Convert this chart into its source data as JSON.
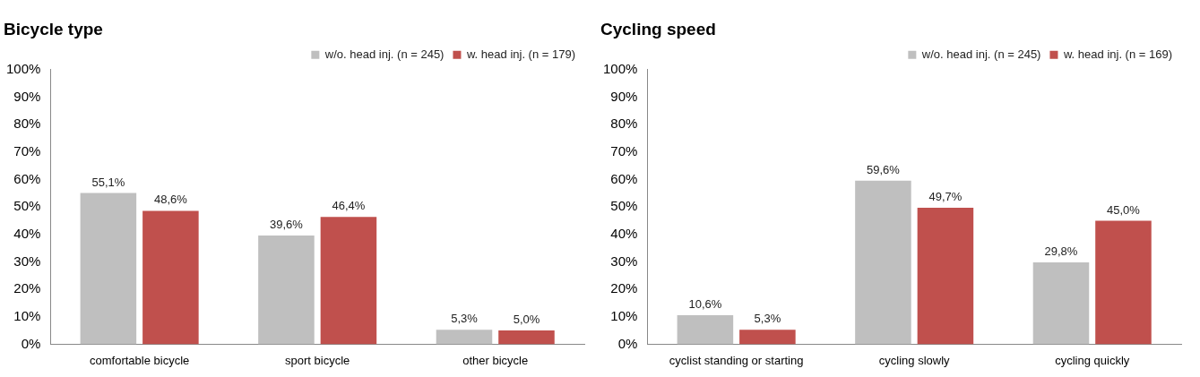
{
  "chart_data": [
    {
      "type": "bar",
      "title": "Bicycle type",
      "categories": [
        "comfortable bicycle",
        "sport bicycle",
        "other bicycle"
      ],
      "series": [
        {
          "name": "w/o. head inj. (n = 245)",
          "color": "#bfbfbf",
          "values": [
            55.1,
            39.6,
            5.3
          ],
          "value_labels": [
            "55,1%",
            "39,6%",
            "5,3%"
          ]
        },
        {
          "name": "w. head inj. (n = 179)",
          "color": "#c0504d",
          "values": [
            48.6,
            46.4,
            5.0
          ],
          "value_labels": [
            "48,6%",
            "46,4%",
            "5,0%"
          ]
        }
      ],
      "ylim": [
        0,
        100
      ],
      "yticks": [
        {
          "value": 0,
          "label": "0%"
        },
        {
          "value": 10,
          "label": "10%"
        },
        {
          "value": 20,
          "label": "20%"
        },
        {
          "value": 30,
          "label": "30%"
        },
        {
          "value": 40,
          "label": "40%"
        },
        {
          "value": 50,
          "label": "50%"
        },
        {
          "value": 60,
          "label": "60%"
        },
        {
          "value": 70,
          "label": "70%"
        },
        {
          "value": 80,
          "label": "80%"
        },
        {
          "value": 90,
          "label": "90%"
        },
        {
          "value": 100,
          "label": "100%"
        }
      ],
      "grid": false,
      "legend": "top right"
    },
    {
      "type": "bar",
      "title": "Cycling speed",
      "categories": [
        "cyclist standing or starting",
        "cycling slowly",
        "cycling quickly"
      ],
      "series": [
        {
          "name": "w/o. head inj. (n = 245)",
          "color": "#bfbfbf",
          "values": [
            10.6,
            59.6,
            29.8
          ],
          "value_labels": [
            "10,6%",
            "59,6%",
            "29,8%"
          ]
        },
        {
          "name": "w. head inj. (n = 169)",
          "color": "#c0504d",
          "values": [
            5.3,
            49.7,
            45.0
          ],
          "value_labels": [
            "5,3%",
            "49,7%",
            "45,0%"
          ]
        }
      ],
      "ylim": [
        0,
        100
      ],
      "yticks": [
        {
          "value": 0,
          "label": "0%"
        },
        {
          "value": 10,
          "label": "10%"
        },
        {
          "value": 20,
          "label": "20%"
        },
        {
          "value": 30,
          "label": "30%"
        },
        {
          "value": 40,
          "label": "40%"
        },
        {
          "value": 50,
          "label": "50%"
        },
        {
          "value": 60,
          "label": "60%"
        },
        {
          "value": 70,
          "label": "70%"
        },
        {
          "value": 80,
          "label": "80%"
        },
        {
          "value": 90,
          "label": "90%"
        },
        {
          "value": 100,
          "label": "100%"
        }
      ],
      "grid": false,
      "legend": "top right"
    }
  ]
}
